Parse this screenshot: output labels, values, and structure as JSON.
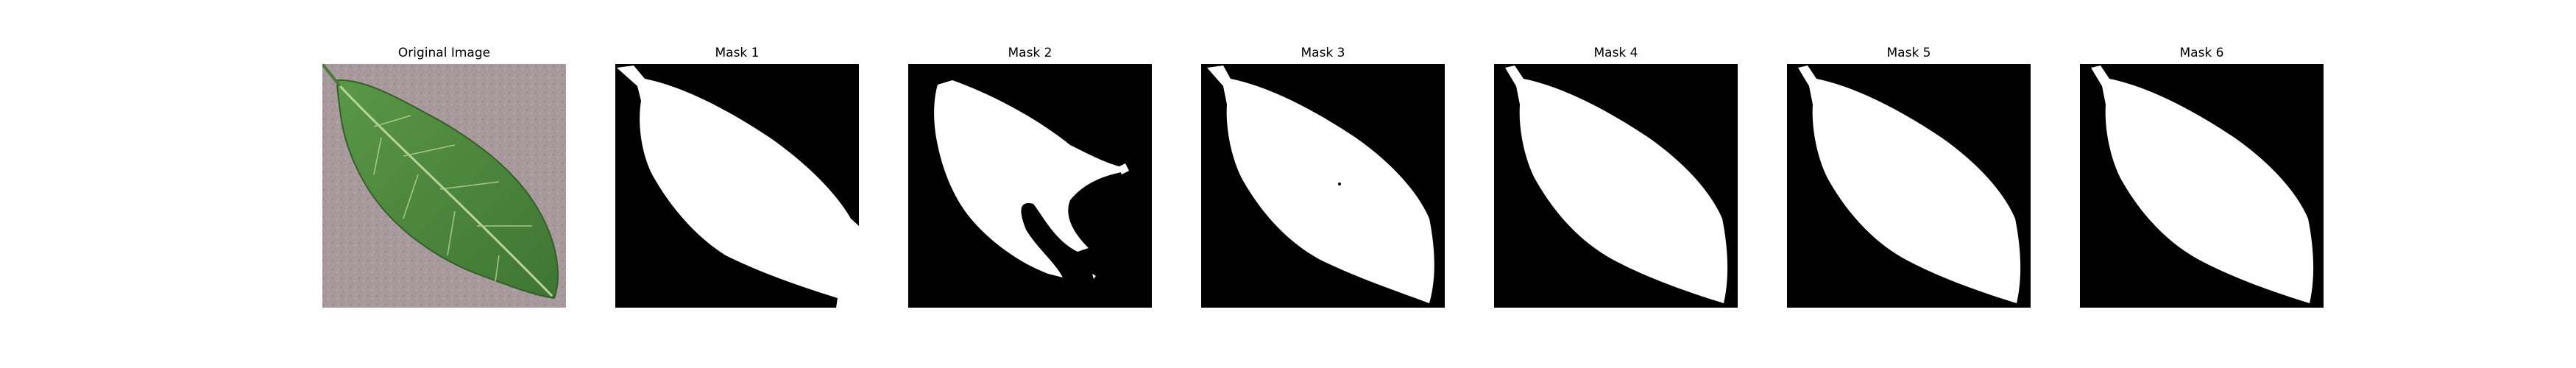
{
  "figure": {
    "panels": [
      {
        "title": "Original Image",
        "kind": "photo"
      },
      {
        "title": "Mask 1",
        "kind": "mask"
      },
      {
        "title": "Mask 2",
        "kind": "mask"
      },
      {
        "title": "Mask 3",
        "kind": "mask"
      },
      {
        "title": "Mask 4",
        "kind": "mask"
      },
      {
        "title": "Mask 5",
        "kind": "mask"
      },
      {
        "title": "Mask 6",
        "kind": "mask"
      }
    ]
  },
  "colors": {
    "mask_background": "#000000",
    "mask_foreground": "#ffffff",
    "photo_background": "#a8999c",
    "leaf_green": "#4f8a3e",
    "leaf_dark": "#3b6e2f",
    "leaf_vein": "#a7c98a"
  }
}
